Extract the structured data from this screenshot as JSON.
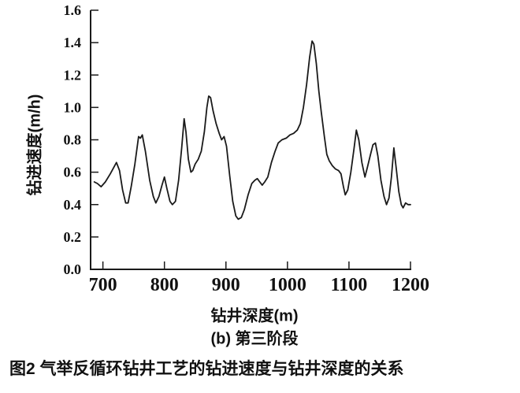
{
  "figure": {
    "caption": "图2  气举反循环钻井工艺的钻进速度与钻井深度的关系",
    "subcaption": "(b) 第三阶段"
  },
  "chart_data": {
    "type": "line",
    "title": "",
    "xlabel": "钻井深度(m)",
    "ylabel": "钻进速度(m/h)",
    "xlim": [
      680,
      1200
    ],
    "ylim": [
      0,
      1.6
    ],
    "xticks": [
      700,
      800,
      900,
      1000,
      1100,
      1200
    ],
    "yticks": [
      0.0,
      0.2,
      0.4,
      0.6,
      0.8,
      1.0,
      1.2,
      1.4,
      1.6
    ],
    "grid": false,
    "legend": "none",
    "line_color": "#1a1a1a",
    "series": [
      {
        "name": "钻进速度",
        "x": [
          686,
          691,
          697,
          704,
          712,
          722,
          727,
          732,
          737,
          741,
          746,
          752,
          758,
          761,
          764,
          769,
          776,
          782,
          786,
          791,
          796,
          800,
          804,
          809,
          813,
          818,
          823,
          828,
          832,
          835,
          839,
          843,
          846,
          850,
          855,
          860,
          865,
          869,
          872,
          875,
          879,
          884,
          889,
          893,
          897,
          901,
          906,
          911,
          916,
          920,
          925,
          930,
          936,
          942,
          947,
          951,
          955,
          959,
          963,
          968,
          974,
          980,
          985,
          991,
          998,
          1004,
          1010,
          1016,
          1021,
          1026,
          1031,
          1036,
          1040,
          1043,
          1047,
          1051,
          1055,
          1060,
          1064,
          1068,
          1073,
          1078,
          1083,
          1087,
          1091,
          1094,
          1098,
          1103,
          1108,
          1112,
          1116,
          1121,
          1126,
          1130,
          1135,
          1139,
          1143,
          1147,
          1152,
          1157,
          1161,
          1165,
          1169,
          1173,
          1177,
          1181,
          1185,
          1188,
          1192,
          1196,
          1200
        ],
        "y": [
          0.54,
          0.53,
          0.51,
          0.54,
          0.59,
          0.66,
          0.61,
          0.49,
          0.41,
          0.41,
          0.51,
          0.65,
          0.82,
          0.81,
          0.83,
          0.73,
          0.55,
          0.45,
          0.41,
          0.45,
          0.52,
          0.57,
          0.5,
          0.42,
          0.4,
          0.42,
          0.55,
          0.75,
          0.93,
          0.85,
          0.68,
          0.6,
          0.61,
          0.65,
          0.68,
          0.73,
          0.85,
          1.0,
          1.07,
          1.06,
          0.98,
          0.9,
          0.84,
          0.8,
          0.82,
          0.76,
          0.58,
          0.42,
          0.33,
          0.31,
          0.32,
          0.37,
          0.46,
          0.53,
          0.55,
          0.56,
          0.54,
          0.52,
          0.54,
          0.57,
          0.66,
          0.73,
          0.78,
          0.8,
          0.81,
          0.83,
          0.84,
          0.86,
          0.9,
          1.0,
          1.14,
          1.31,
          1.41,
          1.39,
          1.27,
          1.1,
          0.97,
          0.82,
          0.71,
          0.67,
          0.64,
          0.62,
          0.61,
          0.59,
          0.51,
          0.46,
          0.49,
          0.6,
          0.74,
          0.86,
          0.8,
          0.66,
          0.57,
          0.63,
          0.71,
          0.77,
          0.78,
          0.7,
          0.55,
          0.45,
          0.4,
          0.44,
          0.57,
          0.75,
          0.62,
          0.48,
          0.4,
          0.38,
          0.41,
          0.4,
          0.4
        ]
      }
    ]
  }
}
